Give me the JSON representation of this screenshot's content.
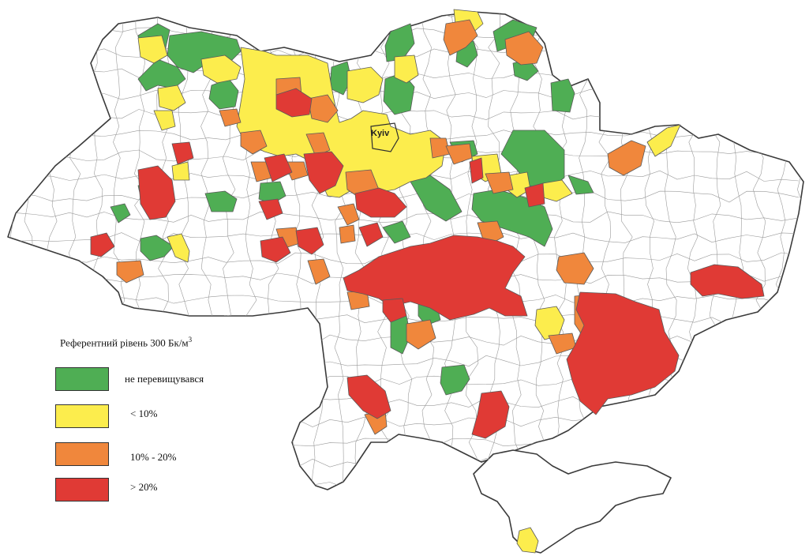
{
  "map": {
    "city_label": "Kyiv",
    "colors": {
      "none": "#ffffff",
      "green": "#4fae54",
      "yellow": "#fced4d",
      "orange": "#f0873c",
      "red": "#e03a35",
      "border": "#3a3a3a"
    }
  },
  "legend": {
    "title": "Референтний рівень 300 Бк/м",
    "title_sup": "3",
    "items": [
      {
        "label": "не перевищувався",
        "color": "#4fae54"
      },
      {
        "label": "< 10%",
        "color": "#fced4d"
      },
      {
        "label": "10% - 20%",
        "color": "#f0873c"
      },
      {
        "label": "> 20%",
        "color": "#e03a35"
      }
    ]
  }
}
